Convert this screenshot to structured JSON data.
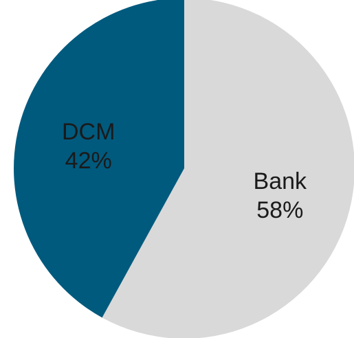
{
  "chart_data": {
    "type": "pie",
    "title": "",
    "slices": [
      {
        "label": "Bank",
        "value": 58,
        "value_label": "58%",
        "color": "#d9d9d9"
      },
      {
        "label": "DCM",
        "value": 42,
        "value_label": "42%",
        "color": "#005a7e"
      }
    ],
    "start": "top",
    "direction": "clockwise",
    "legend": "none"
  }
}
